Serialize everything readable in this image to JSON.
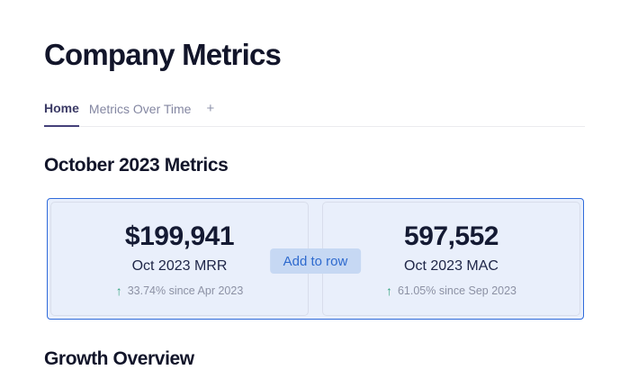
{
  "header": {
    "title": "Company Metrics"
  },
  "tabs": {
    "items": [
      {
        "label": "Home",
        "active": true
      },
      {
        "label": "Metrics Over Time",
        "active": false
      }
    ],
    "add_label": "+"
  },
  "sections": {
    "metrics": {
      "heading": "October 2023 Metrics",
      "add_button_label": "Add to row",
      "cards": [
        {
          "value": "$199,941",
          "label": "Oct 2023 MRR",
          "delta": "33.74% since Apr 2023",
          "direction": "up"
        },
        {
          "value": "597,552",
          "label": "Oct 2023 MAC",
          "delta": "61.05% since Sep 2023",
          "direction": "up"
        }
      ]
    },
    "growth": {
      "heading": "Growth Overview"
    }
  },
  "icons": {
    "arrow_up": "↑"
  },
  "colors": {
    "card_background": "#e9effb",
    "card_border": "#2f6bdb",
    "tile_border": "#d8ddeb",
    "button_background": "#c6d8f3",
    "button_text": "#2e6ace",
    "delta_arrow_green": "#35a37f",
    "delta_text_gray": "#8c91a4",
    "heading_text": "#12152a",
    "active_tab_underline": "#45407a",
    "inactive_tab_text": "#8487a2"
  }
}
